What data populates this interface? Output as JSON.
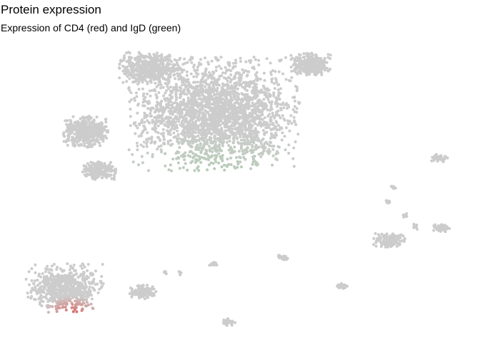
{
  "title": "Protein expression",
  "subtitle": "Expression of CD4 (red) and IgD (green)",
  "chart_data": {
    "type": "scatter",
    "title": "Protein expression",
    "subtitle": "Expression of CD4 (red) and IgD (green)",
    "xlabel": "",
    "ylabel": "",
    "axes_visible": false,
    "grid": false,
    "legend": "none",
    "colors": {
      "base": "#cccccc",
      "cd4_high": "#d9534f",
      "igd_high": "#9fcc9f"
    },
    "point_radius_note": "small circles, grey unless expressing",
    "series": [
      {
        "name": "CD4",
        "color": "#d9534f",
        "description": "elevated in bottom-left cluster tip"
      },
      {
        "name": "IgD",
        "color": "#9fcc9f",
        "description": "elevated in lower part of top-central cluster"
      }
    ]
  }
}
